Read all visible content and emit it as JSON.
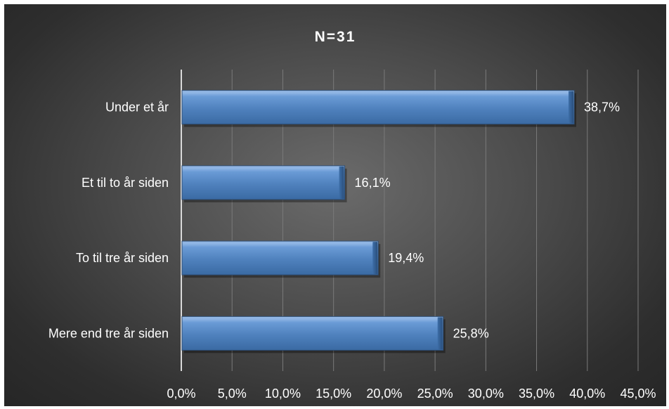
{
  "chart_data": {
    "type": "bar",
    "orientation": "horizontal",
    "title": "N=31",
    "categories": [
      "Under et år",
      "Et til to år siden",
      "To til tre år siden",
      "Mere end tre år siden"
    ],
    "values": [
      38.7,
      16.1,
      19.4,
      25.8
    ],
    "data_labels": [
      "38,7%",
      "16,1%",
      "19,4%",
      "25,8%"
    ],
    "x_ticks": [
      0,
      5,
      10,
      15,
      20,
      25,
      30,
      35,
      40,
      45
    ],
    "x_tick_labels": [
      "0,0%",
      "5,0%",
      "10,0%",
      "15,0%",
      "20,0%",
      "25,0%",
      "30,0%",
      "35,0%",
      "40,0%",
      "45,0%"
    ],
    "xlim": [
      0,
      45
    ],
    "grid": true,
    "legend": "none",
    "colors": {
      "bar": "#4f81bd",
      "bar_highlight": "#8fb4e3",
      "bar_shadow": "#2c4d75",
      "gridline": "#7a7a7a",
      "axis": "#d9d9d9",
      "text": "#ffffff"
    }
  }
}
